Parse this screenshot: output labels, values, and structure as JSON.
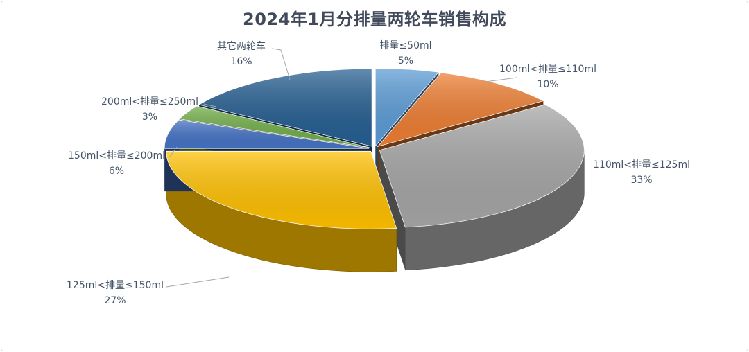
{
  "chart_data": {
    "type": "pie",
    "title": "2024年1月分排量两轮车销售构成",
    "slices": [
      {
        "label": "排量≤50ml",
        "value": 5,
        "value_label": "5%",
        "color": "#5b9bd5"
      },
      {
        "label": "100ml<排量≤110ml",
        "value": 10,
        "value_label": "10%",
        "color": "#ed7d31"
      },
      {
        "label": "110ml<排量≤125ml",
        "value": 33,
        "value_label": "33%",
        "color": "#a5a5a5"
      },
      {
        "label": "125ml<排量≤150ml",
        "value": 27,
        "value_label": "27%",
        "color": "#ffc000"
      },
      {
        "label": "150ml<排量≤200ml",
        "value": 6,
        "value_label": "6%",
        "color": "#4472c4"
      },
      {
        "label": "200ml<排量≤250ml",
        "value": 3,
        "value_label": "3%",
        "color": "#70ad47"
      },
      {
        "label": "其它两轮车",
        "value": 16,
        "value_label": "16%",
        "color": "#255e91"
      }
    ],
    "legend": "none",
    "style": "3d-exploded"
  }
}
